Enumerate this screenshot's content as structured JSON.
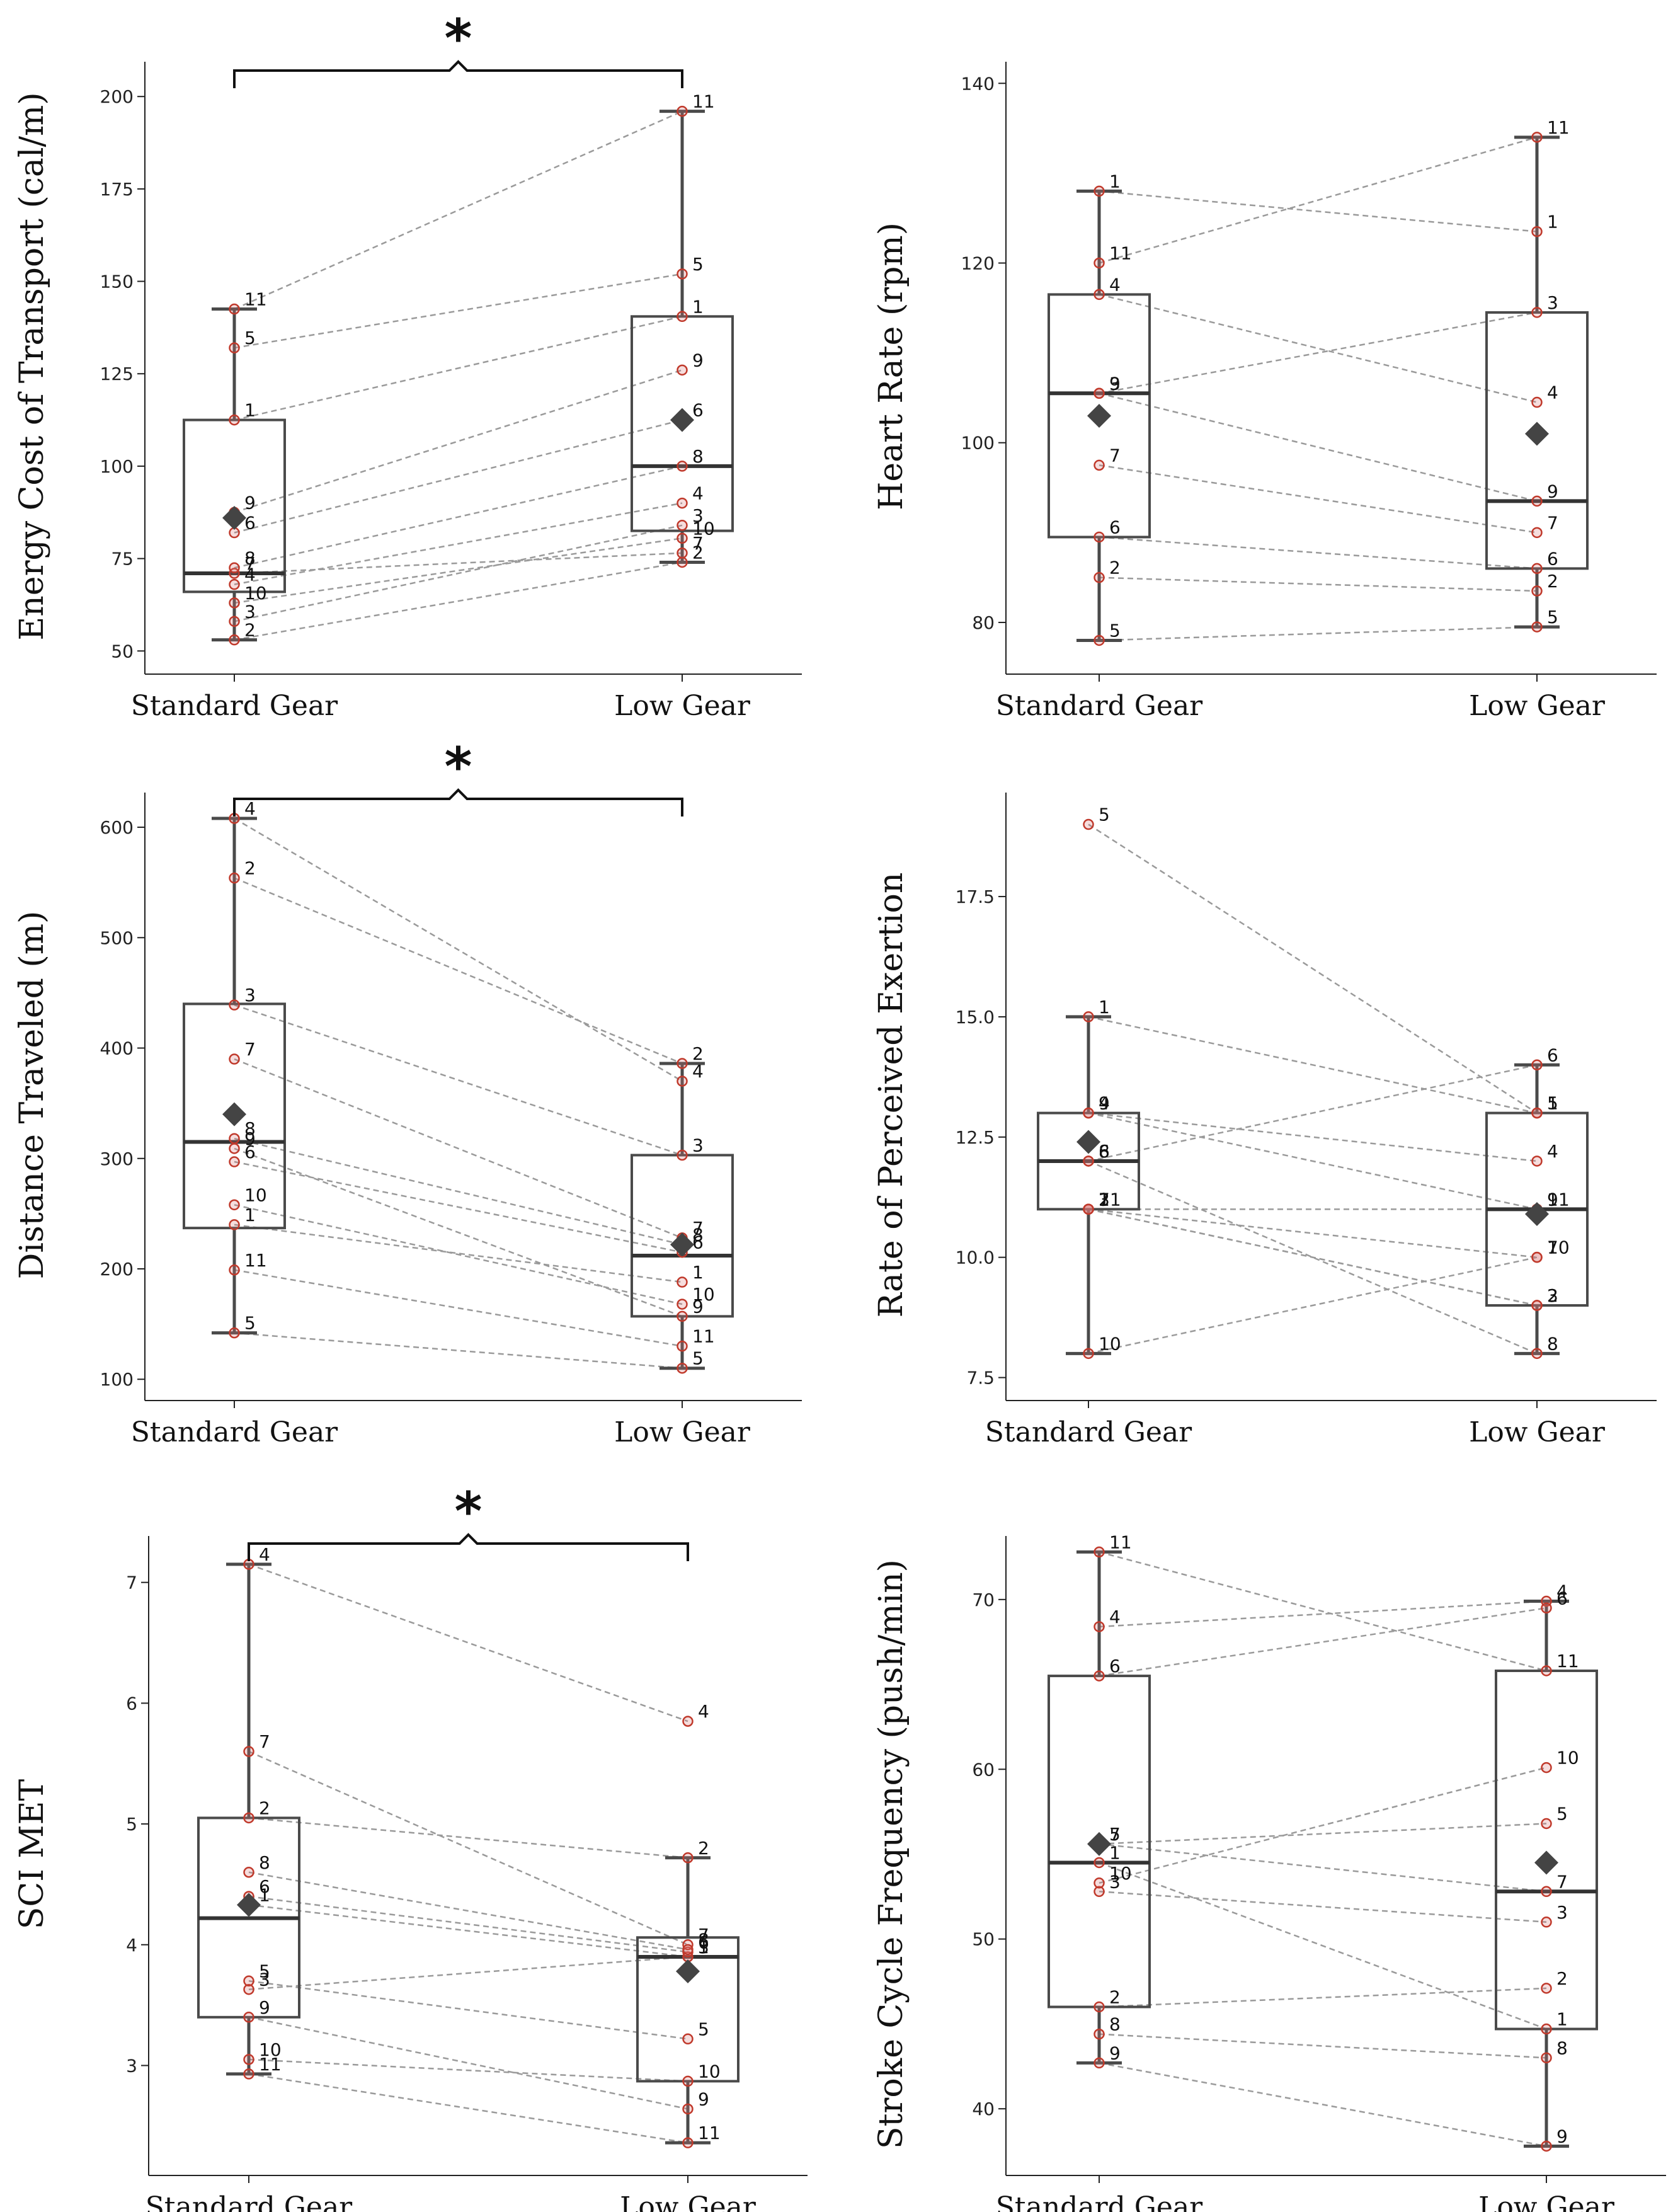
{
  "chart_data": [
    {
      "type": "box",
      "ylabel": "Energy Cost of Transport (cal/m)",
      "categories": [
        "Standard Gear",
        "Low Gear"
      ],
      "ylim": [
        48,
        206
      ],
      "yticks": [
        "50",
        "75",
        "100",
        "125",
        "150",
        "175",
        "200"
      ],
      "significance": "*",
      "boxes": [
        {
          "category": "Standard Gear",
          "whisker_low": 53,
          "q1": 66,
          "median": 71,
          "q3": 112.5,
          "whisker_high": 142.5,
          "mean": 86
        },
        {
          "category": "Low Gear",
          "whisker_low": 74,
          "q1": 82.5,
          "median": 100,
          "q3": 140.5,
          "whisker_high": 196,
          "mean": 112.5
        }
      ],
      "subjects": [
        {
          "id": "1",
          "values": [
            112.5,
            140.5
          ]
        },
        {
          "id": "2",
          "values": [
            53,
            74
          ]
        },
        {
          "id": "3",
          "values": [
            58,
            84
          ]
        },
        {
          "id": "4",
          "values": [
            68,
            90
          ]
        },
        {
          "id": "5",
          "values": [
            132,
            152
          ]
        },
        {
          "id": "6",
          "values": [
            82,
            112.5
          ]
        },
        {
          "id": "7",
          "values": [
            71,
            76.5
          ]
        },
        {
          "id": "8",
          "values": [
            72.5,
            100
          ]
        },
        {
          "id": "9",
          "values": [
            87.5,
            126
          ]
        },
        {
          "id": "10",
          "values": [
            63,
            80.5
          ]
        },
        {
          "id": "11",
          "values": [
            142.5,
            196
          ]
        }
      ]
    },
    {
      "type": "box",
      "ylabel": "Heart Rate (rpm)",
      "categories": [
        "Standard Gear",
        "Low Gear"
      ],
      "ylim": [
        76,
        141
      ],
      "yticks": [
        "80",
        "100",
        "120",
        "140"
      ],
      "boxes": [
        {
          "category": "Standard Gear",
          "whisker_low": 78,
          "q1": 89.5,
          "median": 105.5,
          "q3": 116.5,
          "whisker_high": 128,
          "mean": 103
        },
        {
          "category": "Low Gear",
          "whisker_low": 79.5,
          "q1": 86,
          "median": 93.5,
          "q3": 114.5,
          "whisker_high": 134,
          "mean": 101
        }
      ],
      "subjects": [
        {
          "id": "1",
          "values": [
            128,
            123.5
          ]
        },
        {
          "id": "2",
          "values": [
            85,
            83.5
          ]
        },
        {
          "id": "3",
          "values": [
            105.5,
            114.5
          ]
        },
        {
          "id": "4",
          "values": [
            116.5,
            104.5
          ]
        },
        {
          "id": "5",
          "values": [
            78,
            79.5
          ]
        },
        {
          "id": "6",
          "values": [
            89.5,
            86
          ]
        },
        {
          "id": "7",
          "values": [
            97.5,
            90
          ]
        },
        {
          "id": "9",
          "values": [
            105.5,
            93.5
          ]
        },
        {
          "id": "11",
          "values": [
            120,
            134
          ]
        }
      ]
    },
    {
      "type": "box",
      "ylabel": "Distance Traveled (m)",
      "categories": [
        "Standard Gear",
        "Low Gear"
      ],
      "ylim": [
        95,
        620
      ],
      "yticks": [
        "100",
        "200",
        "300",
        "400",
        "500",
        "600"
      ],
      "significance": "*",
      "boxes": [
        {
          "category": "Standard Gear",
          "whisker_low": 142,
          "q1": 237,
          "median": 315,
          "q3": 440,
          "whisker_high": 608,
          "mean": 340
        },
        {
          "category": "Low Gear",
          "whisker_low": 110,
          "q1": 157,
          "median": 212,
          "q3": 303,
          "whisker_high": 386,
          "mean": 222
        }
      ],
      "subjects": [
        {
          "id": "1",
          "values": [
            240,
            188
          ]
        },
        {
          "id": "2",
          "values": [
            554,
            386
          ]
        },
        {
          "id": "3",
          "values": [
            439,
            303
          ]
        },
        {
          "id": "4",
          "values": [
            608,
            370
          ]
        },
        {
          "id": "5",
          "values": [
            142,
            110
          ]
        },
        {
          "id": "6",
          "values": [
            297,
            215
          ]
        },
        {
          "id": "7",
          "values": [
            390,
            228
          ]
        },
        {
          "id": "8",
          "values": [
            318,
            222
          ]
        },
        {
          "id": "9",
          "values": [
            309,
            157
          ]
        },
        {
          "id": "10",
          "values": [
            258,
            168
          ]
        },
        {
          "id": "11",
          "values": [
            199,
            130
          ]
        }
      ]
    },
    {
      "type": "box",
      "ylabel": "Rate of Perceived Exertion",
      "categories": [
        "Standard Gear",
        "Low Gear"
      ],
      "ylim": [
        7.35,
        19.4
      ],
      "yticks": [
        "7.5",
        "10.0",
        "12.5",
        "15.0",
        "17.5"
      ],
      "boxes": [
        {
          "category": "Standard Gear",
          "whisker_low": 8,
          "q1": 11,
          "median": 12,
          "q3": 13,
          "whisker_high": 15,
          "mean": 12.4
        },
        {
          "category": "Low Gear",
          "whisker_low": 8,
          "q1": 9,
          "median": 11,
          "q3": 13,
          "whisker_high": 14,
          "mean": 10.9
        }
      ],
      "subjects": [
        {
          "id": "1",
          "values": [
            15,
            13
          ]
        },
        {
          "id": "2",
          "values": [
            11,
            9
          ]
        },
        {
          "id": "3",
          "values": [
            11,
            9
          ]
        },
        {
          "id": "4",
          "values": [
            13,
            12
          ]
        },
        {
          "id": "5",
          "values": [
            19,
            13
          ]
        },
        {
          "id": "6",
          "values": [
            12,
            14
          ]
        },
        {
          "id": "7",
          "values": [
            11,
            10
          ]
        },
        {
          "id": "8",
          "values": [
            12,
            8
          ]
        },
        {
          "id": "9",
          "values": [
            13,
            11
          ]
        },
        {
          "id": "10",
          "values": [
            8,
            10
          ]
        },
        {
          "id": "11",
          "values": [
            11,
            11
          ]
        }
      ]
    },
    {
      "type": "box",
      "ylabel": "SCI MET",
      "categories": [
        "Standard Gear",
        "Low Gear"
      ],
      "ylim": [
        2.22,
        7.28
      ],
      "yticks": [
        "3",
        "4",
        "5",
        "6",
        "7"
      ],
      "significance": "*",
      "boxes": [
        {
          "category": "Standard Gear",
          "whisker_low": 2.93,
          "q1": 3.4,
          "median": 4.22,
          "q3": 5.05,
          "whisker_high": 7.15,
          "mean": 4.33
        },
        {
          "category": "Low Gear",
          "whisker_low": 2.36,
          "q1": 2.87,
          "median": 3.9,
          "q3": 4.06,
          "whisker_high": 4.72,
          "mean": 3.78
        }
      ],
      "subjects": [
        {
          "id": "1",
          "values": [
            4.33,
            3.9
          ]
        },
        {
          "id": "2",
          "values": [
            5.05,
            4.72
          ]
        },
        {
          "id": "3",
          "values": [
            3.63,
            3.9
          ]
        },
        {
          "id": "4",
          "values": [
            7.15,
            5.85
          ]
        },
        {
          "id": "5",
          "values": [
            3.7,
            3.22
          ]
        },
        {
          "id": "6",
          "values": [
            4.4,
            3.94
          ]
        },
        {
          "id": "7",
          "values": [
            5.6,
            4.0
          ]
        },
        {
          "id": "8",
          "values": [
            4.6,
            3.96
          ]
        },
        {
          "id": "9",
          "values": [
            3.4,
            2.64
          ]
        },
        {
          "id": "10",
          "values": [
            3.05,
            2.87
          ]
        },
        {
          "id": "11",
          "values": [
            2.93,
            2.36
          ]
        }
      ]
    },
    {
      "type": "box",
      "ylabel": "Stroke Cycle Frequency (push/min)",
      "categories": [
        "Standard Gear",
        "Low Gear"
      ],
      "ylim": [
        37,
        73
      ],
      "yticks": [
        "40",
        "50",
        "60",
        "70"
      ],
      "boxes": [
        {
          "category": "Standard Gear",
          "whisker_low": 42.7,
          "q1": 46,
          "median": 54.5,
          "q3": 65.5,
          "whisker_high": 72.8,
          "mean": 55.6
        },
        {
          "category": "Low Gear",
          "whisker_low": 37.8,
          "q1": 44.7,
          "median": 52.8,
          "q3": 65.8,
          "whisker_high": 69.9,
          "mean": 54.5
        }
      ],
      "subjects": [
        {
          "id": "1",
          "values": [
            54.5,
            44.7
          ]
        },
        {
          "id": "2",
          "values": [
            46,
            47.1
          ]
        },
        {
          "id": "3",
          "values": [
            52.8,
            51
          ]
        },
        {
          "id": "4",
          "values": [
            68.4,
            69.9
          ]
        },
        {
          "id": "5",
          "values": [
            55.6,
            56.8
          ]
        },
        {
          "id": "6",
          "values": [
            65.5,
            69.5
          ]
        },
        {
          "id": "7",
          "values": [
            55.6,
            52.8
          ]
        },
        {
          "id": "8",
          "values": [
            44.4,
            43
          ]
        },
        {
          "id": "9",
          "values": [
            42.7,
            37.8
          ]
        },
        {
          "id": "10",
          "values": [
            53.3,
            60.1
          ]
        },
        {
          "id": "11",
          "values": [
            72.8,
            65.8
          ]
        }
      ]
    }
  ]
}
